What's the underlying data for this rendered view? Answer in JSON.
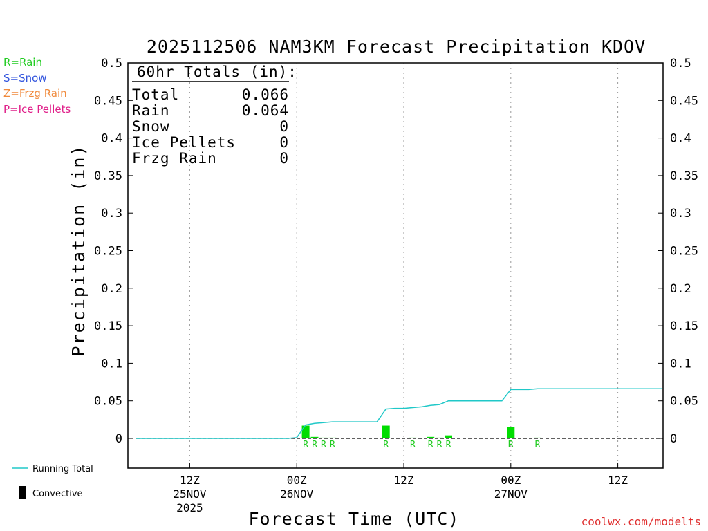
{
  "chart_data": {
    "type": "bar",
    "title": "2025112506 NAM3KM Forecast Precipitation KDOV",
    "xlabel": "Forecast Time (UTC)",
    "ylabel": "Precipitation (in)",
    "ylim": [
      -0.04,
      0.5
    ],
    "yticks": [
      0,
      0.05,
      0.1,
      0.15,
      0.2,
      0.25,
      0.3,
      0.35,
      0.4,
      0.45,
      0.5
    ],
    "ytick_labels": [
      "0",
      "0.05",
      "0.1",
      "0.15",
      "0.2",
      "0.25",
      "0.3",
      "0.35",
      "0.4",
      "0.45",
      "0.5"
    ],
    "xlim": [
      -1,
      59
    ],
    "x_units": "hours from 2025-11-25 06Z",
    "xticks": [
      {
        "x": 6,
        "time": "12Z",
        "date": "25NOV",
        "year": "2025"
      },
      {
        "x": 18,
        "time": "00Z",
        "date": "26NOV",
        "year": ""
      },
      {
        "x": 30,
        "time": "12Z",
        "date": "",
        "year": ""
      },
      {
        "x": 42,
        "time": "00Z",
        "date": "27NOV",
        "year": ""
      },
      {
        "x": 54,
        "time": "12Z",
        "date": "",
        "year": ""
      }
    ],
    "grid": true,
    "bars": [
      {
        "x": 19,
        "value": 0.017,
        "ptype": "R"
      },
      {
        "x": 20,
        "value": 0.002,
        "ptype": "R"
      },
      {
        "x": 21,
        "value": 0.001,
        "ptype": "R"
      },
      {
        "x": 22,
        "value": 0.001,
        "ptype": "R"
      },
      {
        "x": 28,
        "value": 0.017,
        "ptype": "R"
      },
      {
        "x": 31,
        "value": 0.001,
        "ptype": "R"
      },
      {
        "x": 33,
        "value": 0.002,
        "ptype": "R"
      },
      {
        "x": 34,
        "value": 0.001,
        "ptype": "R"
      },
      {
        "x": 35,
        "value": 0.004,
        "ptype": "R"
      },
      {
        "x": 42,
        "value": 0.015,
        "ptype": "R"
      },
      {
        "x": 45,
        "value": 0.001,
        "ptype": "R"
      }
    ],
    "running_total": {
      "x": [
        0,
        17,
        18,
        19,
        20,
        21,
        22,
        23,
        24,
        25,
        26,
        27,
        28,
        29,
        30,
        31,
        32,
        33,
        34,
        35,
        36,
        37,
        38,
        39,
        40,
        41,
        42,
        43,
        44,
        45,
        46,
        47,
        48,
        49,
        50,
        51,
        52,
        53,
        54,
        55,
        56,
        57,
        58,
        59
      ],
      "y": [
        0,
        0,
        0.001,
        0.018,
        0.02,
        0.021,
        0.022,
        0.022,
        0.022,
        0.022,
        0.022,
        0.022,
        0.039,
        0.04,
        0.04,
        0.041,
        0.042,
        0.044,
        0.045,
        0.05,
        0.05,
        0.05,
        0.05,
        0.05,
        0.05,
        0.05,
        0.065,
        0.065,
        0.065,
        0.066,
        0.066,
        0.066,
        0.066,
        0.066,
        0.066,
        0.066,
        0.066,
        0.066,
        0.066,
        0.066,
        0.066,
        0.066,
        0.066,
        0.066
      ]
    },
    "totals_box": {
      "heading": "60hr Totals (in):",
      "rows": [
        {
          "label": "Total",
          "value": "0.066"
        },
        {
          "label": "Rain",
          "value": "0.064"
        },
        {
          "label": "Snow",
          "value": "0"
        },
        {
          "label": "Ice Pellets",
          "value": "0"
        },
        {
          "label": "Frzg Rain",
          "value": "0"
        }
      ]
    },
    "ptype_legend": [
      {
        "code": "R",
        "text": "R=Rain",
        "color": "#22cc22"
      },
      {
        "code": "S",
        "text": "S=Snow",
        "color": "#3355dd"
      },
      {
        "code": "Z",
        "text": "Z=Frzg Rain",
        "color": "#f08a3c"
      },
      {
        "code": "P",
        "text": "P=Ice Pellets",
        "color": "#e0208a"
      }
    ],
    "series_legend": {
      "running_total": "Running Total",
      "convective": "Convective"
    },
    "colors": {
      "bar": "#00dd00",
      "running_total": "#20c8c8",
      "axis": "#000000",
      "grid": "#999999",
      "credit": "#e03030"
    }
  },
  "credit": "coolwx.com/modelts"
}
